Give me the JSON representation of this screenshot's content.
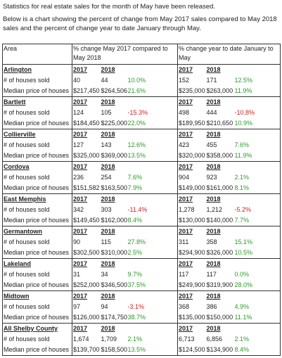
{
  "intro": [
    "Statistics for real estate sales for the month of May have been released.",
    "Below is a chart showing the percent of change from May 2017 sales compared to May 2018 sales and the percent of change year to date January through May."
  ],
  "table": {
    "header": [
      "Area",
      "% change May 2017 compared to May 2018",
      "% change year to date January to May"
    ],
    "sections": [
      {
        "name": "Arlington",
        "years": [
          "2017",
          "2018",
          "2017",
          "2018"
        ],
        "rows": [
          [
            "# of houses sold",
            "40",
            "44",
            "10.0%",
            "152",
            "171",
            "12.5%"
          ],
          [
            "Median price of houses",
            "$217,450",
            "$264,506",
            "21.6%",
            "$235,000",
            "$263,000",
            "11.9%"
          ]
        ]
      },
      {
        "name": "Bartlett",
        "years": [
          "2017",
          "2018",
          "2017",
          "2018"
        ],
        "rows": [
          [
            "# of houses sold",
            "124",
            "105",
            "-15.3%",
            "498",
            "444",
            "-10.8%"
          ],
          [
            "Median price of houses",
            "$184,450",
            "$225,000",
            "22.0%",
            "$189,950",
            "$210,650",
            "10.9%"
          ]
        ]
      },
      {
        "name": "Collierville",
        "years": [
          "2017",
          "2018",
          "2017",
          "2018"
        ],
        "rows": [
          [
            "# of houses sold",
            "127",
            "143",
            "12.6%",
            "423",
            "455",
            "7.6%"
          ],
          [
            "Median price of houses",
            "$325,000",
            "$369,000",
            "13.5%",
            "$320,000",
            "$358,000",
            "11.9%"
          ]
        ]
      },
      {
        "name": "Cordova",
        "years": [
          "2017",
          "2018",
          "2017",
          "2018"
        ],
        "rows": [
          [
            "# of houses sold",
            "236",
            "254",
            "7.6%",
            "904",
            "923",
            "2.1%"
          ],
          [
            "Median price of houses",
            "$151,582",
            "$163,500",
            "7.9%",
            "$149,000",
            "$161,000",
            "8.1%"
          ]
        ]
      },
      {
        "name": "East Memphis",
        "years": [
          "2017",
          "2018",
          "2017",
          "2018"
        ],
        "rows": [
          [
            "# of houses sold",
            "342",
            "303",
            "-11.4%",
            "1,278",
            "1,212",
            "-5.2%"
          ],
          [
            "Median price of houses",
            "$149,450",
            "$162,000",
            "8.4%",
            "$130,000",
            "$140,000",
            "7.7%"
          ]
        ]
      },
      {
        "name": "Germantown",
        "years": [
          "2017",
          "2018",
          "2017",
          "2018"
        ],
        "rows": [
          [
            "# of houses sold",
            "90",
            "115",
            "27.8%",
            "311",
            "358",
            "15.1%"
          ],
          [
            "Median price of houses",
            "$302,500",
            "$310,000",
            "2.5%",
            "$294,900",
            "$326,000",
            "10.5%"
          ]
        ]
      },
      {
        "name": "Lakeland",
        "years": [
          "2017",
          "2018",
          "2017",
          "2018"
        ],
        "rows": [
          [
            "# of houses sold",
            "31",
            "34",
            "9.7%",
            "117",
            "117",
            "0.0%"
          ],
          [
            "Median price of houses",
            "$252,000",
            "$346,500",
            "37.5%",
            "$249,900",
            "$319,900",
            "28.0%"
          ]
        ]
      },
      {
        "name": "Midtown",
        "years": [
          "2017",
          "2018",
          "2017",
          "2018"
        ],
        "rows": [
          [
            "# of houses sold",
            "97",
            "94",
            "-3.1%",
            "368",
            "386",
            "4.9%"
          ],
          [
            "Median price of houses",
            "$126,000",
            "$174,750",
            "38.7%",
            "$135,000",
            "$150,000",
            "11.1%"
          ]
        ]
      },
      {
        "name": "All Shelby County",
        "years": [
          "2017",
          "2018",
          "2017",
          "2018"
        ],
        "rows": [
          [
            "# of houses sold",
            "1,674",
            "1,709",
            "2.1%",
            "6,713",
            "6,856",
            "2.1%"
          ],
          [
            "Median price of houses",
            "$139,700",
            "$158,500",
            "13.5%",
            "$124,500",
            "$134,900",
            "8.4%"
          ]
        ]
      }
    ]
  }
}
